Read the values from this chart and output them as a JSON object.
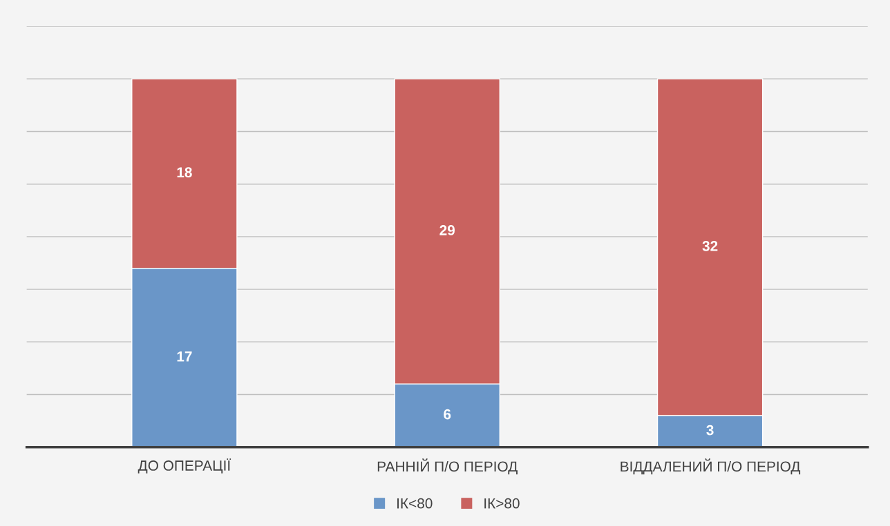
{
  "chart_data": {
    "type": "bar",
    "stacked": true,
    "categories": [
      "ДО ОПЕРАЦІЇ",
      "РАННІЙ П/О ПЕРІОД",
      "ВІДДАЛЕНИЙ П/О ПЕРІОД"
    ],
    "series": [
      {
        "name": "ІК<80",
        "color": "#6a96c8",
        "values": [
          17,
          6,
          3
        ]
      },
      {
        "name": "ІК>80",
        "color": "#c9625f",
        "values": [
          18,
          29,
          32
        ]
      }
    ],
    "ylim": [
      0,
      40
    ],
    "yticks": [
      {
        "value": 0,
        "label": null
      },
      {
        "value": 5,
        "label": null
      },
      {
        "value": 10,
        "label": null
      },
      {
        "value": 15,
        "label": null
      },
      {
        "value": 20,
        "label": null
      },
      {
        "value": 25,
        "label": null
      },
      {
        "value": 30,
        "label": null
      },
      {
        "value": 35,
        "label": null
      },
      {
        "value": 40,
        "label": null
      }
    ],
    "tick_labels": "x",
    "grid": "y",
    "legend": "bottom",
    "data_labels": true
  }
}
